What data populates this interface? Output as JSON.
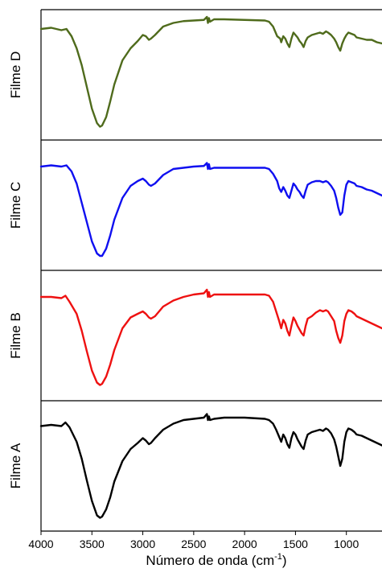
{
  "chart_data": {
    "type": "line",
    "xlabel": {
      "text": "Número de onda (cm",
      "sup": "-1",
      "suffix": ")"
    },
    "xlim": [
      4000,
      650
    ],
    "x_reversed": true,
    "xticks": [
      4000,
      3500,
      3000,
      2500,
      2000,
      1500,
      1000
    ],
    "xtick_labels": [
      "4000",
      "3500",
      "3000",
      "2500",
      "2000",
      "1500",
      "1000"
    ],
    "grid": false,
    "panels": [
      {
        "name": "Filme D",
        "color": "#4f6b1c",
        "points": [
          [
            4000,
            0.12
          ],
          [
            3900,
            0.11
          ],
          [
            3800,
            0.13
          ],
          [
            3750,
            0.12
          ],
          [
            3700,
            0.18
          ],
          [
            3650,
            0.28
          ],
          [
            3600,
            0.42
          ],
          [
            3550,
            0.6
          ],
          [
            3500,
            0.78
          ],
          [
            3450,
            0.9
          ],
          [
            3420,
            0.93
          ],
          [
            3400,
            0.92
          ],
          [
            3360,
            0.85
          ],
          [
            3320,
            0.72
          ],
          [
            3280,
            0.58
          ],
          [
            3200,
            0.38
          ],
          [
            3120,
            0.28
          ],
          [
            3050,
            0.22
          ],
          [
            3000,
            0.17
          ],
          [
            2970,
            0.18
          ],
          [
            2940,
            0.21
          ],
          [
            2920,
            0.2
          ],
          [
            2880,
            0.17
          ],
          [
            2800,
            0.1
          ],
          [
            2700,
            0.07
          ],
          [
            2600,
            0.055
          ],
          [
            2500,
            0.05
          ],
          [
            2400,
            0.045
          ],
          [
            2370,
            0.02
          ],
          [
            2360,
            0.07
          ],
          [
            2350,
            0.03
          ],
          [
            2340,
            0.06
          ],
          [
            2300,
            0.04
          ],
          [
            2200,
            0.04
          ],
          [
            2000,
            0.045
          ],
          [
            1800,
            0.05
          ],
          [
            1760,
            0.06
          ],
          [
            1720,
            0.1
          ],
          [
            1680,
            0.18
          ],
          [
            1650,
            0.2
          ],
          [
            1640,
            0.23
          ],
          [
            1620,
            0.18
          ],
          [
            1600,
            0.2
          ],
          [
            1580,
            0.24
          ],
          [
            1560,
            0.27
          ],
          [
            1540,
            0.2
          ],
          [
            1520,
            0.15
          ],
          [
            1500,
            0.17
          ],
          [
            1480,
            0.19
          ],
          [
            1460,
            0.22
          ],
          [
            1440,
            0.24
          ],
          [
            1420,
            0.27
          ],
          [
            1400,
            0.22
          ],
          [
            1380,
            0.19
          ],
          [
            1340,
            0.17
          ],
          [
            1300,
            0.16
          ],
          [
            1260,
            0.15
          ],
          [
            1230,
            0.16
          ],
          [
            1200,
            0.14
          ],
          [
            1180,
            0.15
          ],
          [
            1150,
            0.17
          ],
          [
            1120,
            0.2
          ],
          [
            1100,
            0.23
          ],
          [
            1080,
            0.27
          ],
          [
            1060,
            0.3
          ],
          [
            1040,
            0.24
          ],
          [
            1020,
            0.2
          ],
          [
            1000,
            0.17
          ],
          [
            980,
            0.15
          ],
          [
            950,
            0.16
          ],
          [
            920,
            0.17
          ],
          [
            900,
            0.19
          ],
          [
            850,
            0.2
          ],
          [
            800,
            0.21
          ],
          [
            750,
            0.21
          ],
          [
            700,
            0.23
          ],
          [
            650,
            0.24
          ]
        ]
      },
      {
        "name": "Filme C",
        "color": "#0f0ff0",
        "points": [
          [
            4000,
            0.18
          ],
          [
            3900,
            0.17
          ],
          [
            3800,
            0.18
          ],
          [
            3750,
            0.17
          ],
          [
            3700,
            0.22
          ],
          [
            3650,
            0.32
          ],
          [
            3600,
            0.48
          ],
          [
            3550,
            0.64
          ],
          [
            3500,
            0.8
          ],
          [
            3450,
            0.9
          ],
          [
            3420,
            0.92
          ],
          [
            3400,
            0.92
          ],
          [
            3360,
            0.86
          ],
          [
            3320,
            0.75
          ],
          [
            3280,
            0.62
          ],
          [
            3200,
            0.44
          ],
          [
            3120,
            0.34
          ],
          [
            3050,
            0.3
          ],
          [
            3000,
            0.28
          ],
          [
            2970,
            0.3
          ],
          [
            2940,
            0.33
          ],
          [
            2920,
            0.34
          ],
          [
            2880,
            0.32
          ],
          [
            2800,
            0.25
          ],
          [
            2700,
            0.2
          ],
          [
            2600,
            0.19
          ],
          [
            2500,
            0.18
          ],
          [
            2400,
            0.175
          ],
          [
            2370,
            0.15
          ],
          [
            2360,
            0.2
          ],
          [
            2350,
            0.16
          ],
          [
            2340,
            0.2
          ],
          [
            2300,
            0.19
          ],
          [
            2200,
            0.19
          ],
          [
            2000,
            0.19
          ],
          [
            1800,
            0.19
          ],
          [
            1760,
            0.2
          ],
          [
            1720,
            0.24
          ],
          [
            1680,
            0.3
          ],
          [
            1660,
            0.36
          ],
          [
            1640,
            0.39
          ],
          [
            1620,
            0.35
          ],
          [
            1600,
            0.38
          ],
          [
            1580,
            0.42
          ],
          [
            1560,
            0.44
          ],
          [
            1540,
            0.38
          ],
          [
            1520,
            0.32
          ],
          [
            1500,
            0.34
          ],
          [
            1480,
            0.37
          ],
          [
            1460,
            0.39
          ],
          [
            1440,
            0.42
          ],
          [
            1420,
            0.44
          ],
          [
            1400,
            0.38
          ],
          [
            1380,
            0.33
          ],
          [
            1340,
            0.31
          ],
          [
            1300,
            0.3
          ],
          [
            1260,
            0.3
          ],
          [
            1230,
            0.31
          ],
          [
            1200,
            0.3
          ],
          [
            1180,
            0.31
          ],
          [
            1150,
            0.34
          ],
          [
            1120,
            0.38
          ],
          [
            1100,
            0.44
          ],
          [
            1080,
            0.52
          ],
          [
            1060,
            0.58
          ],
          [
            1040,
            0.56
          ],
          [
            1020,
            0.42
          ],
          [
            1000,
            0.33
          ],
          [
            980,
            0.3
          ],
          [
            950,
            0.31
          ],
          [
            920,
            0.32
          ],
          [
            900,
            0.34
          ],
          [
            850,
            0.35
          ],
          [
            800,
            0.37
          ],
          [
            750,
            0.38
          ],
          [
            700,
            0.4
          ],
          [
            650,
            0.42
          ]
        ]
      },
      {
        "name": "Filme B",
        "color": "#ee1111",
        "points": [
          [
            4000,
            0.18
          ],
          [
            3900,
            0.18
          ],
          [
            3800,
            0.19
          ],
          [
            3760,
            0.17
          ],
          [
            3720,
            0.22
          ],
          [
            3650,
            0.32
          ],
          [
            3600,
            0.46
          ],
          [
            3550,
            0.63
          ],
          [
            3500,
            0.79
          ],
          [
            3450,
            0.89
          ],
          [
            3420,
            0.91
          ],
          [
            3400,
            0.9
          ],
          [
            3360,
            0.84
          ],
          [
            3320,
            0.74
          ],
          [
            3280,
            0.62
          ],
          [
            3200,
            0.44
          ],
          [
            3120,
            0.35
          ],
          [
            3050,
            0.32
          ],
          [
            3000,
            0.3
          ],
          [
            2970,
            0.32
          ],
          [
            2940,
            0.35
          ],
          [
            2920,
            0.36
          ],
          [
            2880,
            0.34
          ],
          [
            2800,
            0.26
          ],
          [
            2700,
            0.21
          ],
          [
            2600,
            0.18
          ],
          [
            2500,
            0.16
          ],
          [
            2400,
            0.15
          ],
          [
            2370,
            0.12
          ],
          [
            2360,
            0.18
          ],
          [
            2350,
            0.14
          ],
          [
            2340,
            0.18
          ],
          [
            2300,
            0.16
          ],
          [
            2200,
            0.16
          ],
          [
            2000,
            0.16
          ],
          [
            1800,
            0.16
          ],
          [
            1760,
            0.17
          ],
          [
            1720,
            0.22
          ],
          [
            1690,
            0.3
          ],
          [
            1660,
            0.38
          ],
          [
            1640,
            0.44
          ],
          [
            1620,
            0.37
          ],
          [
            1600,
            0.4
          ],
          [
            1580,
            0.46
          ],
          [
            1560,
            0.5
          ],
          [
            1540,
            0.42
          ],
          [
            1520,
            0.35
          ],
          [
            1500,
            0.38
          ],
          [
            1480,
            0.42
          ],
          [
            1460,
            0.45
          ],
          [
            1440,
            0.48
          ],
          [
            1420,
            0.5
          ],
          [
            1400,
            0.42
          ],
          [
            1380,
            0.36
          ],
          [
            1340,
            0.34
          ],
          [
            1300,
            0.31
          ],
          [
            1260,
            0.29
          ],
          [
            1230,
            0.3
          ],
          [
            1200,
            0.29
          ],
          [
            1180,
            0.3
          ],
          [
            1150,
            0.34
          ],
          [
            1120,
            0.38
          ],
          [
            1100,
            0.46
          ],
          [
            1080,
            0.52
          ],
          [
            1060,
            0.56
          ],
          [
            1040,
            0.5
          ],
          [
            1020,
            0.38
          ],
          [
            1000,
            0.32
          ],
          [
            980,
            0.29
          ],
          [
            950,
            0.3
          ],
          [
            920,
            0.32
          ],
          [
            900,
            0.34
          ],
          [
            850,
            0.36
          ],
          [
            800,
            0.38
          ],
          [
            750,
            0.4
          ],
          [
            700,
            0.42
          ],
          [
            650,
            0.44
          ]
        ]
      },
      {
        "name": "Filme A",
        "color": "#000000",
        "points": [
          [
            4000,
            0.17
          ],
          [
            3900,
            0.16
          ],
          [
            3800,
            0.17
          ],
          [
            3760,
            0.14
          ],
          [
            3720,
            0.18
          ],
          [
            3650,
            0.3
          ],
          [
            3600,
            0.44
          ],
          [
            3550,
            0.62
          ],
          [
            3500,
            0.79
          ],
          [
            3450,
            0.91
          ],
          [
            3420,
            0.93
          ],
          [
            3400,
            0.92
          ],
          [
            3360,
            0.86
          ],
          [
            3320,
            0.76
          ],
          [
            3280,
            0.63
          ],
          [
            3200,
            0.46
          ],
          [
            3120,
            0.36
          ],
          [
            3050,
            0.31
          ],
          [
            3000,
            0.27
          ],
          [
            2970,
            0.29
          ],
          [
            2940,
            0.32
          ],
          [
            2920,
            0.31
          ],
          [
            2880,
            0.27
          ],
          [
            2800,
            0.2
          ],
          [
            2700,
            0.15
          ],
          [
            2600,
            0.12
          ],
          [
            2500,
            0.11
          ],
          [
            2400,
            0.1
          ],
          [
            2370,
            0.07
          ],
          [
            2360,
            0.12
          ],
          [
            2350,
            0.09
          ],
          [
            2340,
            0.12
          ],
          [
            2300,
            0.11
          ],
          [
            2200,
            0.1
          ],
          [
            2000,
            0.1
          ],
          [
            1800,
            0.11
          ],
          [
            1760,
            0.12
          ],
          [
            1720,
            0.15
          ],
          [
            1690,
            0.2
          ],
          [
            1660,
            0.26
          ],
          [
            1640,
            0.3
          ],
          [
            1620,
            0.24
          ],
          [
            1600,
            0.27
          ],
          [
            1580,
            0.32
          ],
          [
            1560,
            0.35
          ],
          [
            1540,
            0.27
          ],
          [
            1520,
            0.22
          ],
          [
            1500,
            0.24
          ],
          [
            1480,
            0.28
          ],
          [
            1460,
            0.31
          ],
          [
            1440,
            0.34
          ],
          [
            1420,
            0.36
          ],
          [
            1400,
            0.29
          ],
          [
            1380,
            0.24
          ],
          [
            1340,
            0.22
          ],
          [
            1300,
            0.21
          ],
          [
            1260,
            0.2
          ],
          [
            1230,
            0.21
          ],
          [
            1200,
            0.19
          ],
          [
            1180,
            0.2
          ],
          [
            1150,
            0.23
          ],
          [
            1120,
            0.28
          ],
          [
            1100,
            0.34
          ],
          [
            1080,
            0.42
          ],
          [
            1060,
            0.5
          ],
          [
            1040,
            0.44
          ],
          [
            1020,
            0.3
          ],
          [
            1000,
            0.22
          ],
          [
            980,
            0.19
          ],
          [
            950,
            0.2
          ],
          [
            920,
            0.22
          ],
          [
            900,
            0.24
          ],
          [
            850,
            0.25
          ],
          [
            800,
            0.27
          ],
          [
            750,
            0.29
          ],
          [
            700,
            0.31
          ],
          [
            650,
            0.33
          ]
        ]
      }
    ]
  }
}
